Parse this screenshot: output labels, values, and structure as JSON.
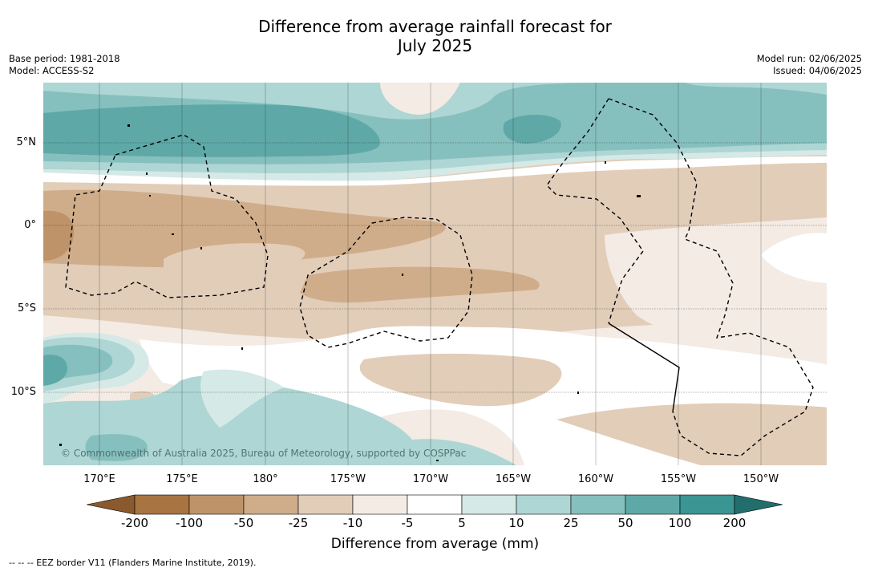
{
  "title_line1": "Difference from average rainfall forecast for",
  "title_line2": "July 2025",
  "base_period": "Base period: 1981-2018",
  "model": "Model: ACCESS-S2",
  "model_run": "Model run: 02/06/2025",
  "issued": "Issued: 04/06/2025",
  "lat_labels": [
    "5°N",
    "0°",
    "5°S",
    "10°S"
  ],
  "lon_labels": [
    "170°E",
    "175°E",
    "180°",
    "175°W",
    "170°W",
    "165°W",
    "160°W",
    "155°W",
    "150°W"
  ],
  "copyright": "© Commonwealth of Australia 2025, Bureau of Meteorology, supported by COSPPac",
  "colorbar": {
    "ticks": [
      "-200",
      "-100",
      "-50",
      "-25",
      "-10",
      "-5",
      "5",
      "10",
      "25",
      "50",
      "100",
      "200"
    ],
    "colors": [
      "#8a5a2e",
      "#a87441",
      "#bf9369",
      "#d0ad8a",
      "#e2cdb9",
      "#f3ebe4",
      "#ffffff",
      "#d5e9e7",
      "#aed6d4",
      "#86c0be",
      "#5ea9a8",
      "#3a9593",
      "#226e6d"
    ],
    "label": "Difference from average (mm)"
  },
  "legend_footer": "-- -- -- EEZ border V11 (Flanders Marine Institute, 2019)."
}
